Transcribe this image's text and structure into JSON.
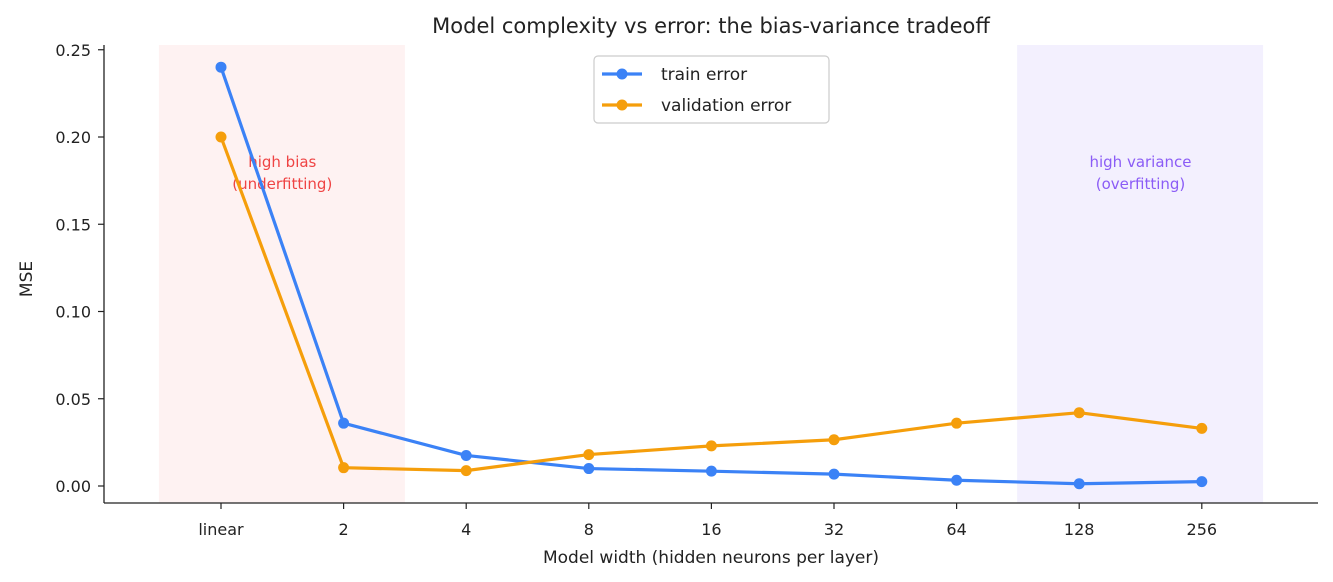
{
  "chart_data": {
    "type": "line",
    "title": "Model complexity vs error: the bias-variance tradeoff",
    "xlabel": "Model width (hidden neurons per layer)",
    "ylabel": "MSE",
    "categories": [
      "linear",
      "2",
      "4",
      "8",
      "16",
      "32",
      "64",
      "128",
      "256"
    ],
    "ylim": [
      -0.01,
      0.252
    ],
    "yticks": [
      "0.00",
      "0.05",
      "0.10",
      "0.15",
      "0.20",
      "0.25"
    ],
    "series": [
      {
        "name": "train error",
        "color": "#3b82f6",
        "values": [
          0.24,
          0.036,
          0.0175,
          0.01,
          0.0085,
          0.0068,
          0.0033,
          0.0013,
          0.0025
        ]
      },
      {
        "name": "validation error",
        "color": "#f59e0b",
        "values": [
          0.2,
          0.0105,
          0.0088,
          0.018,
          0.023,
          0.0265,
          0.036,
          0.042,
          0.033
        ]
      }
    ],
    "regions": [
      {
        "name": "high-bias-region",
        "label_lines": [
          "high bias",
          "(underfitting)"
        ],
        "x_start": -0.5,
        "x_end": 1.5,
        "fill": "#fef2f2",
        "text_color": "#ef4444"
      },
      {
        "name": "high-variance-region",
        "label_lines": [
          "high variance",
          "(overfitting)"
        ],
        "x_start": 6.5,
        "x_end": 8.5,
        "fill": "#f3f0fe",
        "text_color": "#8b5cf6"
      }
    ],
    "legend_position": "top-center",
    "grid": false
  }
}
